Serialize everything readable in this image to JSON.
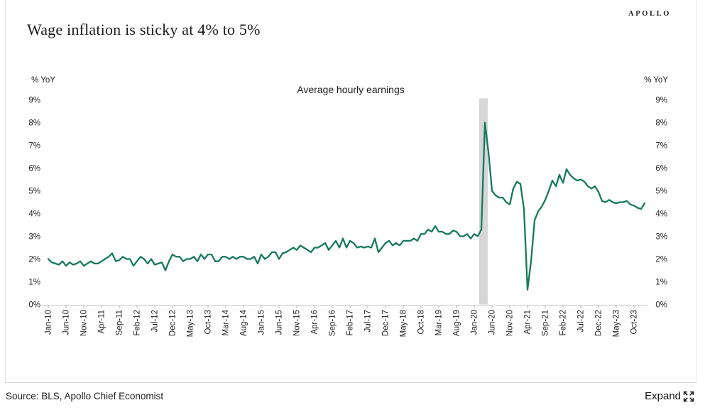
{
  "brand": {
    "logo_text": "APOLLO"
  },
  "title": "Wage inflation is sticky at 4% to 5%",
  "footer": {
    "source": "Source: BLS, Apollo Chief Economist",
    "expand_label": "Expand"
  },
  "colors": {
    "line": "#16795d",
    "recession_band": "#d6d6d6",
    "axis_line": "#cccccc",
    "tick": "#b9b9b9",
    "text": "#212121",
    "border": "#e3e3e3"
  },
  "chart_data": {
    "type": "line",
    "title": "Average hourly earnings",
    "unit_label": "% YoY",
    "grid": "off",
    "y_axis": {
      "min": 0,
      "max": 9,
      "labels_left": [
        "0%",
        "1%",
        "2%",
        "3%",
        "4%",
        "5%",
        "6%",
        "7%",
        "8%",
        "9%"
      ],
      "labels_right": [
        "0%",
        "1%",
        "2%",
        "3%",
        "4%",
        "5%",
        "6%",
        "7%",
        "8%",
        "9%"
      ]
    },
    "x_axis": {
      "tick_labels": [
        "Jan-10",
        "Jun-10",
        "Nov-10",
        "Apr-11",
        "Sep-11",
        "Feb-12",
        "Jul-12",
        "Dec-12",
        "May-13",
        "Oct-13",
        "Mar-14",
        "Aug-14",
        "Jan-15",
        "Jun-15",
        "Nov-15",
        "Apr-16",
        "Sep-16",
        "Feb-17",
        "Jul-17",
        "Dec-17",
        "May-18",
        "Oct-18",
        "Mar-19",
        "Aug-19",
        "Jan-20",
        "Jun-20",
        "Nov-20",
        "Apr-21",
        "Sep-21",
        "Feb-22",
        "Jul-22",
        "Dec-22",
        "May-23",
        "Oct-23"
      ],
      "months_per_tick": 5
    },
    "shaded_band": {
      "from": "Mar-20",
      "to": "Apr-20",
      "color": "#d6d6d6"
    },
    "series": [
      {
        "name": "Average hourly earnings",
        "color": "#16795d",
        "start": "Jan-10",
        "frequency": "monthly",
        "unit": "% YoY",
        "values": [
          2.0,
          1.85,
          1.8,
          1.75,
          1.9,
          1.7,
          1.85,
          1.75,
          1.8,
          1.9,
          1.7,
          1.8,
          1.9,
          1.8,
          1.8,
          1.9,
          2.0,
          2.1,
          2.25,
          1.9,
          1.95,
          2.1,
          2.0,
          2.0,
          1.7,
          1.9,
          2.1,
          2.0,
          1.8,
          2.0,
          1.75,
          1.8,
          1.85,
          1.5,
          1.9,
          2.2,
          2.1,
          2.1,
          1.9,
          2.0,
          2.0,
          2.1,
          1.9,
          2.2,
          2.0,
          2.2,
          2.2,
          1.9,
          1.9,
          2.1,
          2.1,
          2.0,
          2.1,
          2.0,
          2.1,
          2.1,
          2.0,
          2.0,
          2.1,
          1.8,
          2.2,
          2.0,
          2.1,
          2.3,
          2.3,
          2.0,
          2.25,
          2.3,
          2.4,
          2.5,
          2.4,
          2.6,
          2.5,
          2.4,
          2.3,
          2.5,
          2.5,
          2.6,
          2.7,
          2.4,
          2.6,
          2.8,
          2.5,
          2.9,
          2.5,
          2.8,
          2.7,
          2.5,
          2.55,
          2.5,
          2.55,
          2.5,
          2.9,
          2.3,
          2.5,
          2.7,
          2.8,
          2.6,
          2.7,
          2.6,
          2.8,
          2.8,
          2.8,
          2.9,
          2.8,
          3.1,
          3.1,
          3.3,
          3.2,
          3.45,
          3.2,
          3.2,
          3.1,
          3.1,
          3.25,
          3.2,
          3.0,
          3.0,
          3.1,
          2.9,
          3.1,
          3.0,
          3.3,
          8.0,
          6.7,
          5.0,
          4.8,
          4.7,
          4.7,
          4.5,
          4.4,
          5.1,
          5.4,
          5.3,
          4.2,
          0.65,
          1.9,
          3.7,
          4.1,
          4.3,
          4.6,
          5.0,
          5.45,
          5.2,
          5.7,
          5.35,
          5.95,
          5.7,
          5.55,
          5.45,
          5.5,
          5.4,
          5.2,
          5.1,
          5.2,
          4.95,
          4.55,
          4.5,
          4.6,
          4.5,
          4.45,
          4.5,
          4.5,
          4.55,
          4.4,
          4.35,
          4.25,
          4.2,
          4.45
        ]
      }
    ]
  }
}
